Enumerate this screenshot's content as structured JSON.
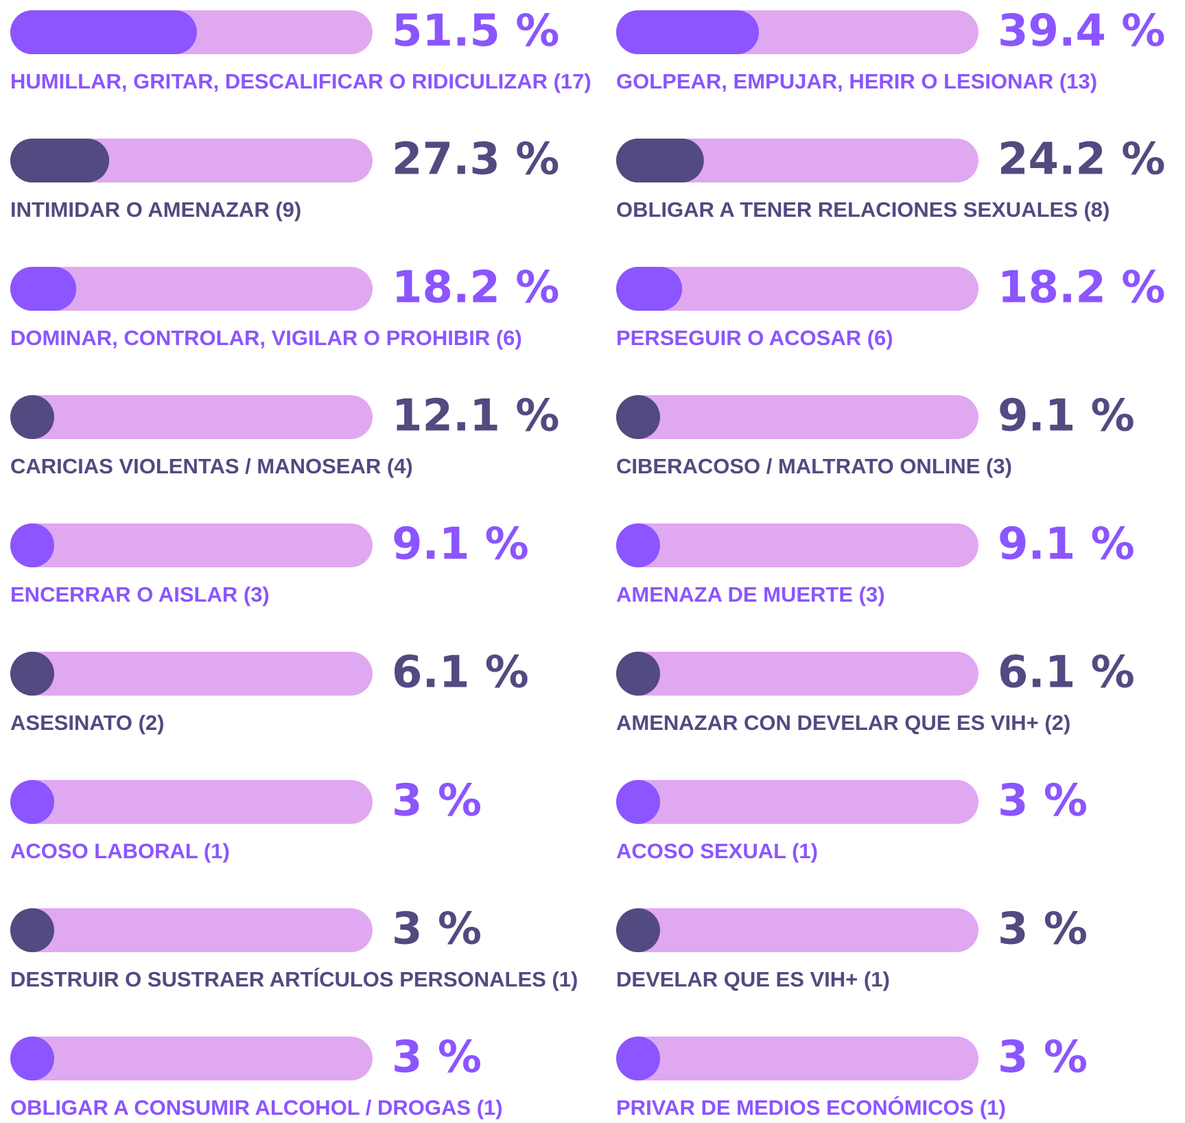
{
  "chart_data": {
    "type": "bar",
    "categories": [
      "HUMILLAR, GRITAR, DESCALIFICAR O RIDICULIZAR (17)",
      "INTIMIDAR O AMENAZAR (9)",
      "DOMINAR, CONTROLAR, VIGILAR O PROHIBIR (6)",
      "CARICIAS VIOLENTAS / MANOSEAR (4)",
      "ENCERRAR O AISLAR (3)",
      "ASESINATO (2)",
      "ACOSO LABORAL (1)",
      "DESTRUIR O SUSTRAER ARTÍCULOS PERSONALES (1)",
      "OBLIGAR A CONSUMIR ALCOHOL / DROGAS (1)",
      "GOLPEAR, EMPUJAR, HERIR O LESIONAR (13)",
      "OBLIGAR A TENER RELACIONES SEXUALES (8)",
      "PERSEGUIR O ACOSAR (6)",
      "CIBERACOSO / MALTRATO ONLINE (3)",
      "AMENAZA DE MUERTE (3)",
      "AMENAZAR CON DEVELAR QUE ES VIH+ (2)",
      "ACOSO SEXUAL (1)",
      "DEVELAR QUE ES VIH+ (1)",
      "PRIVAR DE MEDIOS ECONÓMICOS (1)"
    ],
    "values": [
      51.5,
      27.3,
      18.2,
      12.1,
      9.1,
      6.1,
      3,
      3,
      3,
      39.4,
      24.2,
      18.2,
      9.1,
      9.1,
      6.1,
      3,
      3,
      3
    ],
    "value_labels": [
      "51.5 %",
      "27.3 %",
      "18.2 %",
      "12.1 %",
      "9.1 %",
      "6.1 %",
      "3 %",
      "3 %",
      "3 %",
      "39.4 %",
      "24.2 %",
      "18.2 %",
      "9.1 %",
      "9.1 %",
      "6.1 %",
      "3 %",
      "3 %",
      "3 %"
    ],
    "colors": [
      "#8b55ff",
      "#524a80",
      "#8b55ff",
      "#524a80",
      "#8b55ff",
      "#524a80",
      "#8b55ff",
      "#524a80",
      "#8b55ff",
      "#8b55ff",
      "#524a80",
      "#8b55ff",
      "#524a80",
      "#8b55ff",
      "#524a80",
      "#8b55ff",
      "#524a80",
      "#8b55ff"
    ],
    "track_color": "#e0a8f0",
    "xlim": [
      0,
      100
    ]
  }
}
